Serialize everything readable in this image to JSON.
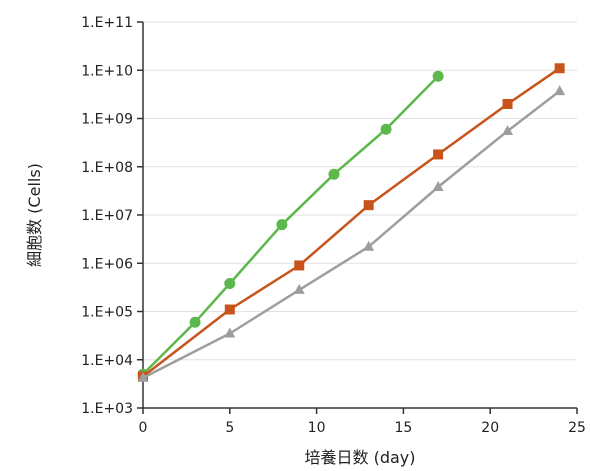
{
  "chart_data": {
    "type": "line",
    "xlabel": "培養日数 (day)",
    "ylabel": "細胞数 (Cells)",
    "xlim": [
      0,
      25
    ],
    "ylim_log10": [
      3,
      11
    ],
    "y_scale": "log",
    "grid": "horizontal",
    "x_ticks": [
      {
        "value": 0,
        "label": "0"
      },
      {
        "value": 5,
        "label": "5"
      },
      {
        "value": 10,
        "label": "10"
      },
      {
        "value": 15,
        "label": "15"
      },
      {
        "value": 20,
        "label": "20"
      },
      {
        "value": 25,
        "label": "25"
      }
    ],
    "y_ticks": [
      {
        "exp": 3,
        "label": "1.E+03"
      },
      {
        "exp": 4,
        "label": "1.E+04"
      },
      {
        "exp": 5,
        "label": "1.E+05"
      },
      {
        "exp": 6,
        "label": "1.E+06"
      },
      {
        "exp": 7,
        "label": "1.E+07"
      },
      {
        "exp": 8,
        "label": "1.E+08"
      },
      {
        "exp": 9,
        "label": "1.E+09"
      },
      {
        "exp": 10,
        "label": "1.E+10"
      },
      {
        "exp": 11,
        "label": "1.E+11"
      }
    ],
    "series": [
      {
        "color": "#5cb84a",
        "marker": "circle",
        "x": [
          0,
          3,
          5,
          8,
          11,
          14,
          17
        ],
        "y": [
          5000,
          60000,
          380000,
          6300000,
          70000000,
          600000000,
          7500000000
        ]
      },
      {
        "color": "#c8541c",
        "marker": "square",
        "x": [
          0,
          5,
          9,
          13,
          17,
          21,
          24
        ],
        "y": [
          4500,
          110000,
          900000,
          16000000,
          180000000,
          2000000000,
          11000000000
        ]
      },
      {
        "color": "#9e9e9e",
        "marker": "triangle",
        "x": [
          0,
          5,
          9,
          13,
          17,
          21,
          24
        ],
        "y": [
          4200,
          35000,
          280000,
          2200000,
          38000000,
          550000000,
          3700000000
        ]
      }
    ]
  }
}
